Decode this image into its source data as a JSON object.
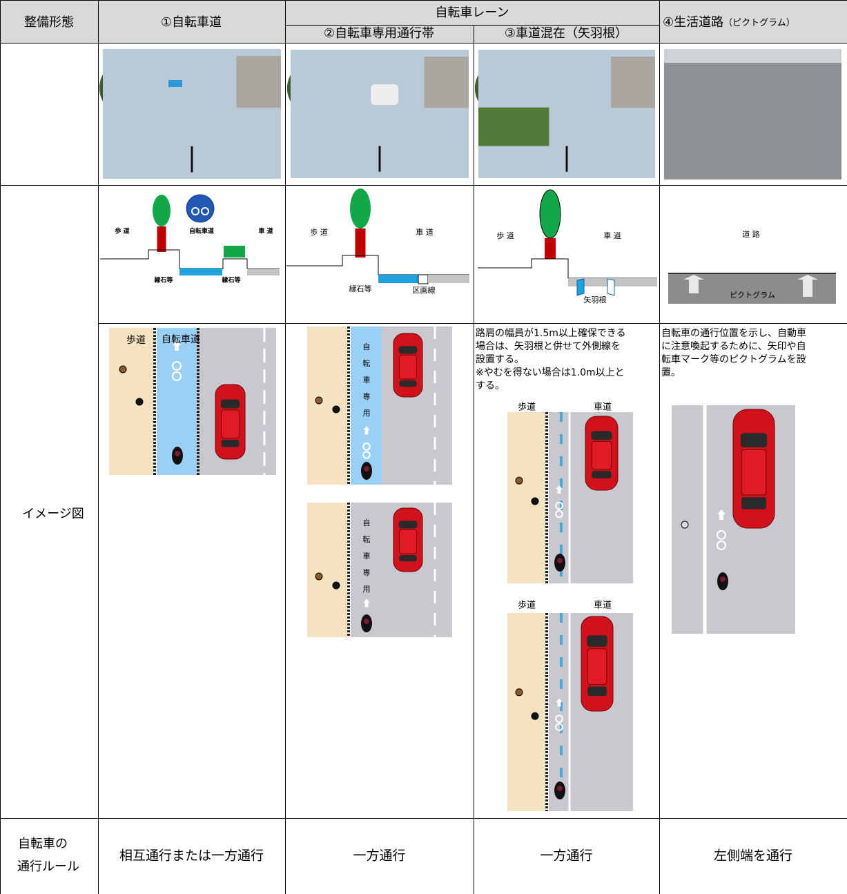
{
  "header": {
    "type_label": "整備形態",
    "col1": "①自転車道",
    "lane_group": "自転車レーン",
    "col2": "②自転車専用通行帯",
    "col3": "③車道混在（矢羽根）",
    "col4": "④生活道路",
    "col4_sub": "（ピクトグラム）"
  },
  "rows": {
    "image_label": "イメージ図",
    "rule_label": [
      "自転車の",
      "通行ルール"
    ]
  },
  "cross_sections": {
    "col1": {
      "sidewalk": "歩 道",
      "bike_path": "自転車道",
      "road": "車 道",
      "curb_left": "縁石等",
      "curb_right": "縁石等"
    },
    "col2": {
      "sidewalk": "歩 道",
      "road": "車 道",
      "curb": "縁石等",
      "lane_line": "区画線"
    },
    "col3": {
      "sidewalk": "歩 道",
      "road": "車 道",
      "arrow": "矢羽根"
    },
    "col4": {
      "road": "道 路",
      "pictogram": "ピクトグラム"
    }
  },
  "image_diagrams": {
    "col1": {
      "sidewalk": "歩道",
      "bike_path": "自転車道"
    },
    "col2": {
      "lane_text": [
        "自",
        "転",
        "車",
        "専",
        "用"
      ]
    },
    "col3": {
      "note": [
        "路肩の幅員が1.5m以上確保できる",
        "場合は、矢羽根と併せて外側線を",
        "設置する。",
        "※やむを得ない場合は1.0m以上と",
        "する。"
      ],
      "sidewalk": "歩道",
      "road": "車道"
    },
    "col4": {
      "note": [
        "自転車の通行位置を示し、自動車",
        "に注意喚起するために、矢印や自",
        "転車マーク等のピクトグラムを設",
        "置。"
      ]
    }
  },
  "rules": [
    "相互通行または一方通行",
    "一方通行",
    "一方通行",
    "左側端を通行"
  ]
}
